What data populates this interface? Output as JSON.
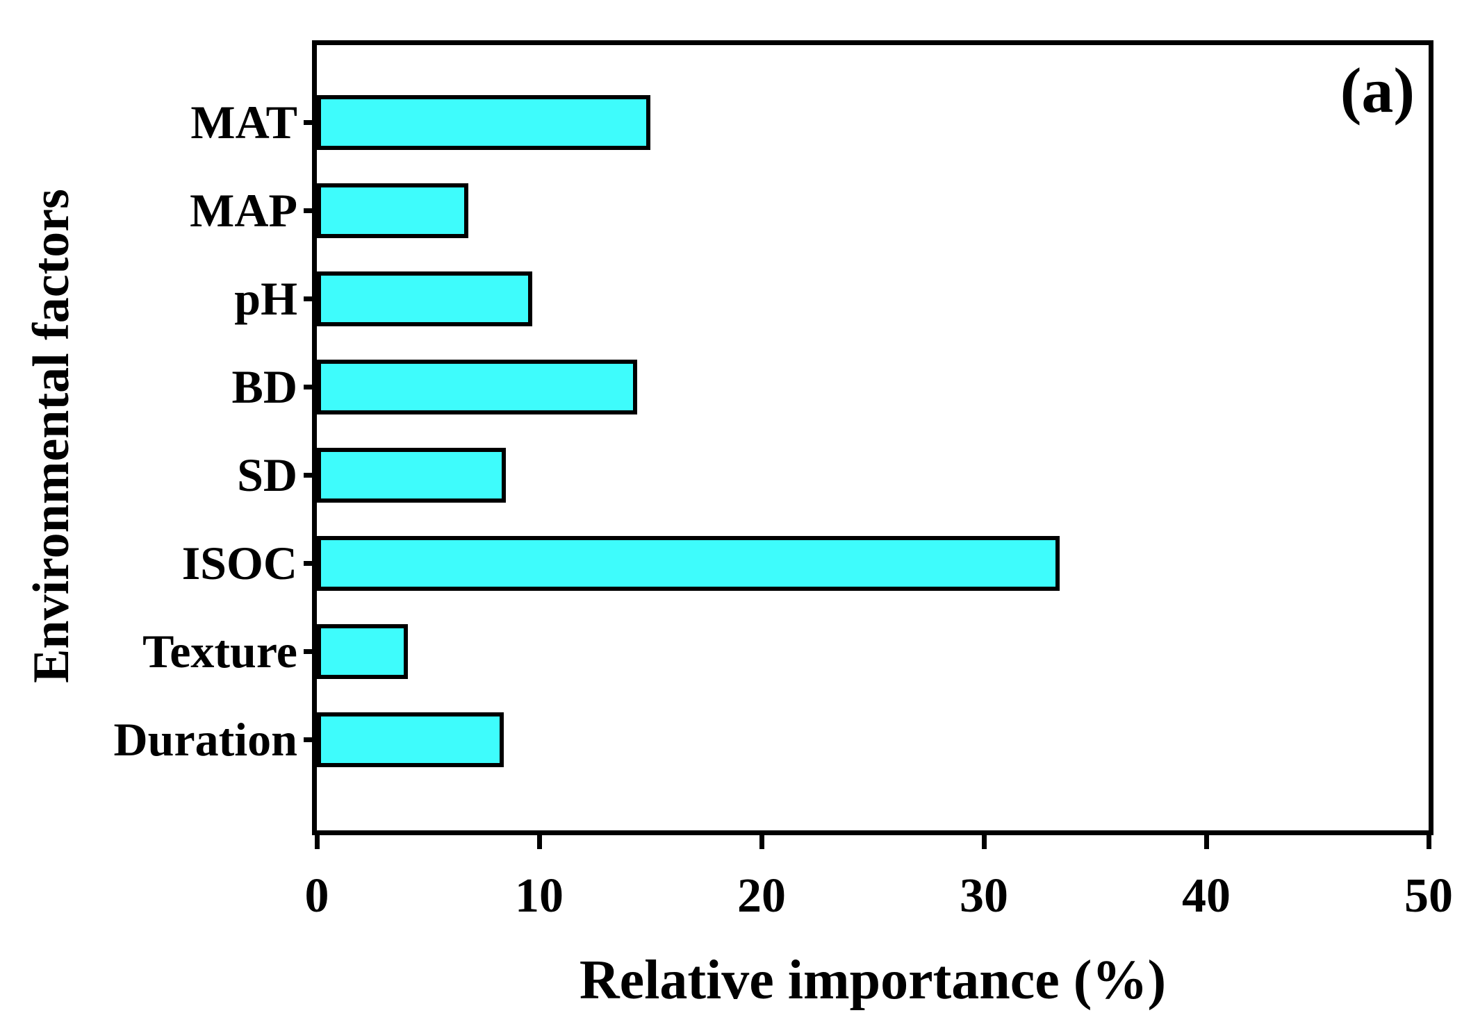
{
  "chart_data": {
    "type": "bar",
    "orientation": "horizontal",
    "panel_label": "(a)",
    "xlabel": "Relative importance (%)",
    "ylabel": "Environmental factors",
    "categories": [
      "MAT",
      "MAP",
      "pH",
      "BD",
      "SD",
      "ISOC",
      "Texture",
      "Duration"
    ],
    "values": [
      15.0,
      6.8,
      9.7,
      14.4,
      8.5,
      33.4,
      4.1,
      8.4
    ],
    "xlim": [
      0,
      50
    ],
    "xticks": [
      0,
      10,
      20,
      30,
      40,
      50
    ],
    "grid": false,
    "legend_position": "none",
    "bar_color": "#3EFCFC",
    "bar_border_color": "#000000",
    "axis_color": "#000000",
    "text_color": "#000000"
  }
}
